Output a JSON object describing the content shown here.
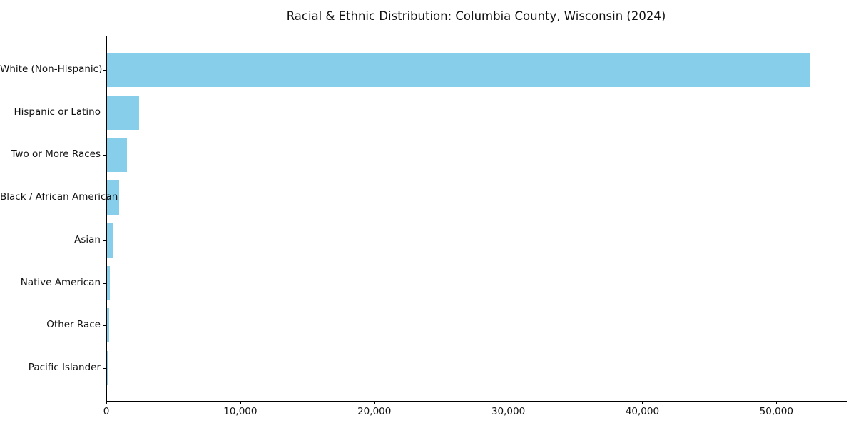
{
  "chart_data": {
    "type": "bar",
    "orientation": "horizontal",
    "title": "Racial & Ethnic Distribution: Columbia County, Wisconsin (2024)",
    "categories": [
      "White (Non-Hispanic)",
      "Hispanic or Latino",
      "Two or More Races",
      "Black / African American",
      "Asian",
      "Native American",
      "Other Race",
      "Pacific Islander"
    ],
    "values": [
      52500,
      2400,
      1500,
      920,
      460,
      210,
      180,
      30
    ],
    "xlabel": "",
    "ylabel": "",
    "xlim": [
      0,
      55200
    ],
    "x_ticks": [
      0,
      10000,
      20000,
      30000,
      40000,
      50000
    ],
    "x_tick_labels": [
      "0",
      "10,000",
      "20,000",
      "30,000",
      "40,000",
      "50,000"
    ],
    "bar_color": "#87CEEB",
    "axis_color": "#000000",
    "text_color": "#111111",
    "grid": false,
    "legend_position": "none"
  }
}
